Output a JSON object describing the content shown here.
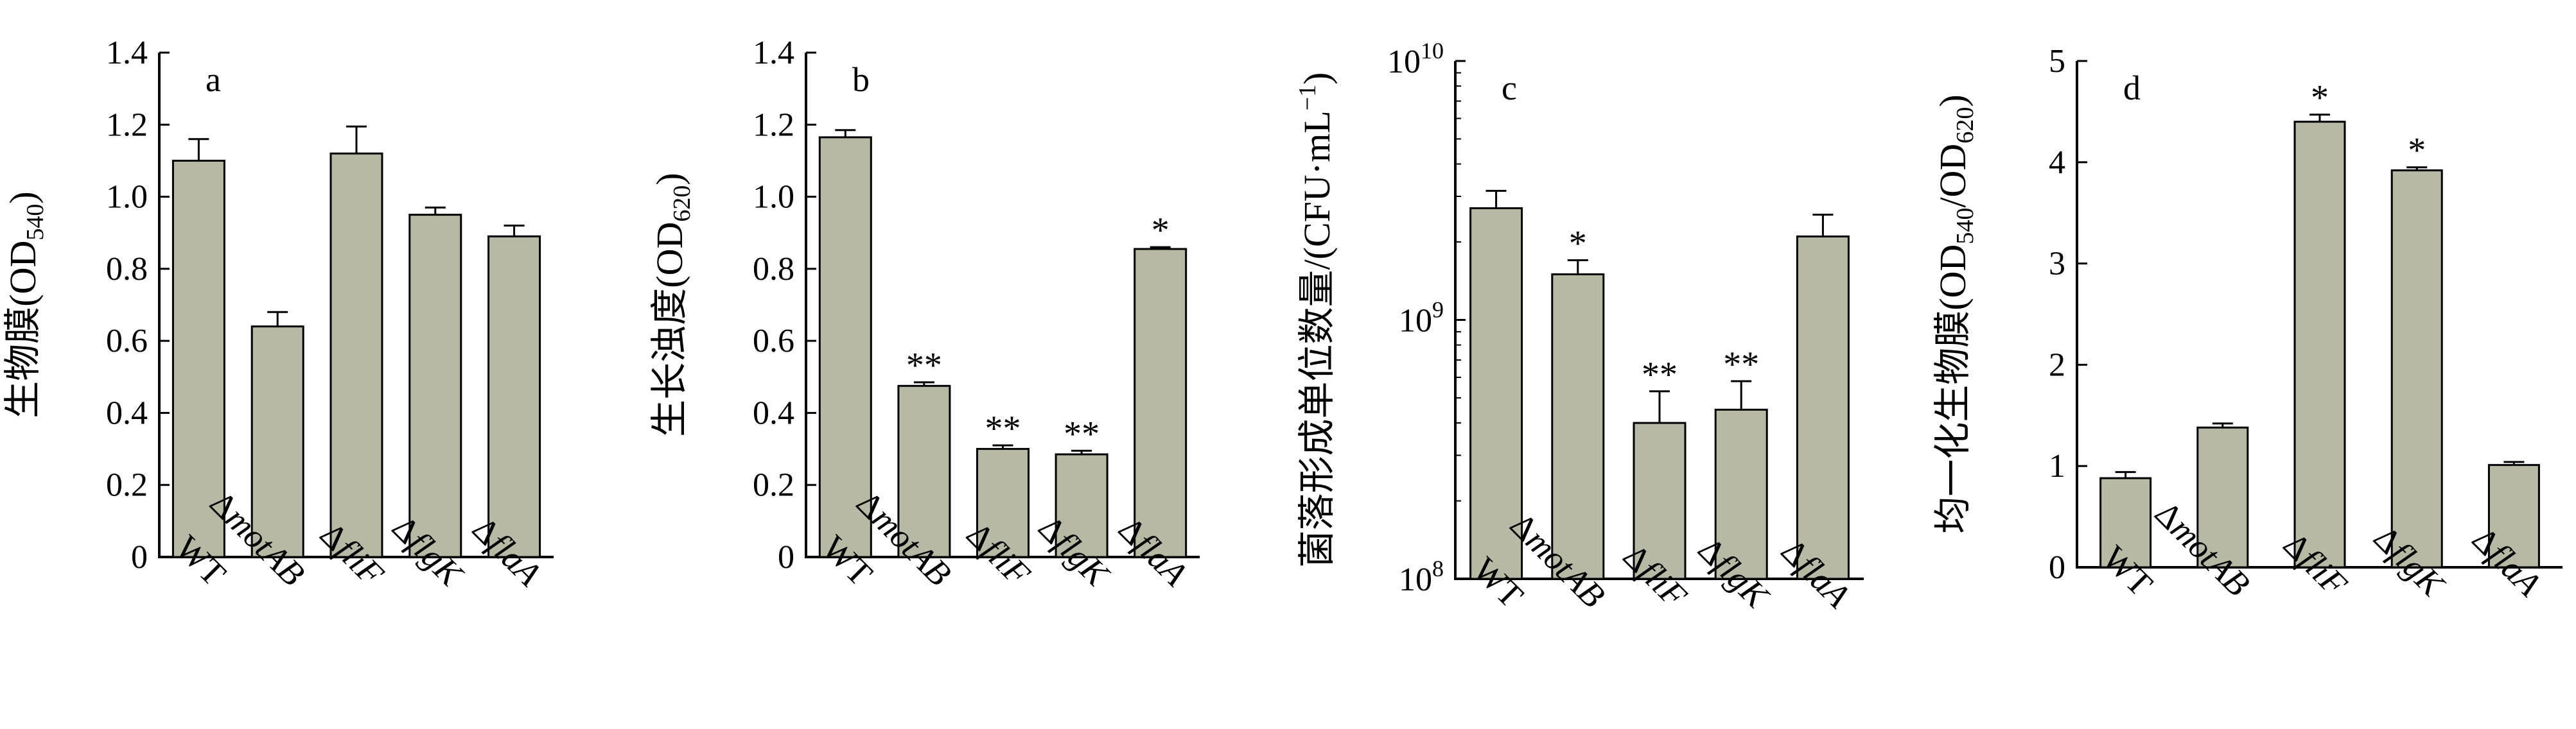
{
  "figure": {
    "bar_color": "#b8b9a5",
    "bar_stroke": "#000000"
  },
  "chart_data": [
    {
      "type": "bar",
      "panel_label": "a",
      "ylabel": "生物膜(OD540)",
      "ylabel_parts": {
        "main": "生物膜(OD",
        "sub": "540",
        "end": ")"
      },
      "categories": [
        {
          "prefix": "",
          "name": "WT",
          "italic": false
        },
        {
          "prefix": "Δ",
          "name": "motAB",
          "italic": true
        },
        {
          "prefix": "Δ",
          "name": "fliF",
          "italic": true
        },
        {
          "prefix": "Δ",
          "name": "flgK",
          "italic": true
        },
        {
          "prefix": "Δ",
          "name": "flaA",
          "italic": true
        }
      ],
      "values": [
        1.1,
        0.64,
        1.12,
        0.95,
        0.89
      ],
      "errors": [
        0.06,
        0.04,
        0.075,
        0.02,
        0.03
      ],
      "significance": [
        "",
        "",
        "",
        "",
        ""
      ],
      "ylim": [
        0,
        1.4
      ],
      "yscale": "linear",
      "yticks": [
        "0",
        "0.2",
        "0.4",
        "0.6",
        "0.8",
        "1.0",
        "1.2",
        "1.4"
      ],
      "ytick_values": [
        0,
        0.2,
        0.4,
        0.6,
        0.8,
        1.0,
        1.2,
        1.4
      ]
    },
    {
      "type": "bar",
      "panel_label": "b",
      "ylabel": "生长浊度(OD620)",
      "ylabel_parts": {
        "main": "生长浊度(OD",
        "sub": "620",
        "end": ")"
      },
      "categories": [
        {
          "prefix": "",
          "name": "WT",
          "italic": false
        },
        {
          "prefix": "Δ",
          "name": "motAB",
          "italic": true
        },
        {
          "prefix": "Δ",
          "name": "fliF",
          "italic": true
        },
        {
          "prefix": "Δ",
          "name": "flgK",
          "italic": true
        },
        {
          "prefix": "Δ",
          "name": "flaA",
          "italic": true
        }
      ],
      "values": [
        1.165,
        0.475,
        0.3,
        0.285,
        0.855
      ],
      "errors": [
        0.02,
        0.01,
        0.01,
        0.01,
        0.005
      ],
      "significance": [
        "",
        "**",
        "**",
        "**",
        "*"
      ],
      "ylim": [
        0,
        1.4
      ],
      "yscale": "linear",
      "yticks": [
        "0",
        "0.2",
        "0.4",
        "0.6",
        "0.8",
        "1.0",
        "1.2",
        "1.4"
      ],
      "ytick_values": [
        0,
        0.2,
        0.4,
        0.6,
        0.8,
        1.0,
        1.2,
        1.4
      ]
    },
    {
      "type": "bar",
      "panel_label": "c",
      "ylabel": "菌落形成单位数量/(CFU·mL−1)",
      "ylabel_parts": {
        "main": "菌落形成单位数量/(CFU·mL",
        "sup": "−1",
        "end": ")"
      },
      "categories": [
        {
          "prefix": "",
          "name": "WT",
          "italic": false
        },
        {
          "prefix": "Δ",
          "name": "motAB",
          "italic": true
        },
        {
          "prefix": "Δ",
          "name": "fliF",
          "italic": true
        },
        {
          "prefix": "Δ",
          "name": "flgK",
          "italic": true
        },
        {
          "prefix": "Δ",
          "name": "flaA",
          "italic": true
        }
      ],
      "values": [
        2700000000.0,
        1500000000.0,
        400000000.0,
        450000000.0,
        2100000000.0
      ],
      "errors": [
        450000000.0,
        200000000.0,
        130000000.0,
        130000000.0,
        450000000.0
      ],
      "significance": [
        "",
        "*",
        "**",
        "**",
        ""
      ],
      "ylim": [
        100000000.0,
        10000000000.0
      ],
      "yscale": "log",
      "yticks": [
        {
          "base": "10",
          "exp": "8"
        },
        {
          "base": "10",
          "exp": "9"
        },
        {
          "base": "10",
          "exp": "10"
        }
      ],
      "ytick_values": [
        100000000.0,
        1000000000.0,
        10000000000.0
      ]
    },
    {
      "type": "bar",
      "panel_label": "d",
      "ylabel": "均一化生物膜(OD540/OD620)",
      "ylabel_parts": {
        "main": "均一化生物膜(OD",
        "sub": "540",
        "mid": "/OD",
        "sub2": "620",
        "end": ")"
      },
      "categories": [
        {
          "prefix": "",
          "name": "WT",
          "italic": false
        },
        {
          "prefix": "Δ",
          "name": "motAB",
          "italic": true
        },
        {
          "prefix": "Δ",
          "name": "fliF",
          "italic": true
        },
        {
          "prefix": "Δ",
          "name": "flgK",
          "italic": true
        },
        {
          "prefix": "Δ",
          "name": "flaA",
          "italic": true
        }
      ],
      "values": [
        0.88,
        1.38,
        4.4,
        3.92,
        1.01
      ],
      "errors": [
        0.06,
        0.04,
        0.07,
        0.03,
        0.03
      ],
      "significance": [
        "",
        "",
        "*",
        "*",
        ""
      ],
      "ylim": [
        0,
        5
      ],
      "yscale": "linear",
      "yticks": [
        "0",
        "1",
        "2",
        "3",
        "4",
        "5"
      ],
      "ytick_values": [
        0,
        1,
        2,
        3,
        4,
        5
      ]
    }
  ]
}
